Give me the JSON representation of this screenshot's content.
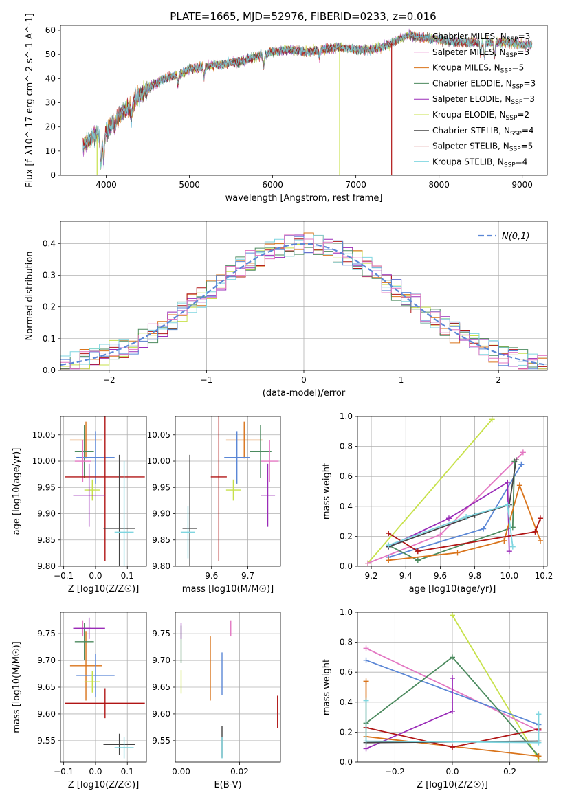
{
  "figure": {
    "title": "PLATE=1665, MJD=52976, FIBERID=0233, z=0.016"
  },
  "chart_data": [
    {
      "id": "spectrum",
      "type": "line",
      "xlabel": "wavelength [Angstrom, rest frame]",
      "ylabel": "Flux [f_λ10^-17 erg cm^-2 s^-1 A^-1]",
      "xlim": [
        3450,
        9300
      ],
      "ylim": [
        0,
        62
      ],
      "xticks": [
        4000,
        5000,
        6000,
        7000,
        8000,
        9000
      ],
      "yticks": [
        0,
        10,
        20,
        30,
        40,
        50,
        60
      ],
      "legend_position": "upper right",
      "continuum": [
        [
          3720,
          12
        ],
        [
          3800,
          15
        ],
        [
          3900,
          17
        ],
        [
          3950,
          16
        ],
        [
          4000,
          18
        ],
        [
          4100,
          23
        ],
        [
          4200,
          26
        ],
        [
          4300,
          29
        ],
        [
          4400,
          33
        ],
        [
          4500,
          36
        ],
        [
          4700,
          40
        ],
        [
          4900,
          42
        ],
        [
          5000,
          44
        ],
        [
          5200,
          45
        ],
        [
          5400,
          46
        ],
        [
          5600,
          47
        ],
        [
          5800,
          49
        ],
        [
          6000,
          51
        ],
        [
          6200,
          52
        ],
        [
          6400,
          51
        ],
        [
          6600,
          52
        ],
        [
          6800,
          53
        ],
        [
          7000,
          52
        ],
        [
          7200,
          52
        ],
        [
          7400,
          54
        ],
        [
          7550,
          57
        ],
        [
          7650,
          58
        ],
        [
          7800,
          57
        ],
        [
          8000,
          56
        ],
        [
          8200,
          55
        ],
        [
          8400,
          55
        ],
        [
          8600,
          55
        ],
        [
          8800,
          55
        ],
        [
          9000,
          54
        ],
        [
          9120,
          54
        ]
      ],
      "dips": [
        {
          "x": 3935,
          "depth": 12
        },
        {
          "x": 3970,
          "depth": 10
        },
        {
          "x": 4103,
          "depth": 4
        },
        {
          "x": 4303,
          "depth": 5
        },
        {
          "x": 4862,
          "depth": 4
        },
        {
          "x": 5175,
          "depth": 4
        },
        {
          "x": 5892,
          "depth": 5
        },
        {
          "x": 6563,
          "depth": 3
        },
        {
          "x": 8500,
          "depth": 5
        },
        {
          "x": 8545,
          "depth": 6
        },
        {
          "x": 8665,
          "depth": 6
        }
      ],
      "spikes": [
        {
          "x": 6805,
          "series": "Kroupa ELODIE"
        },
        {
          "x": 7430,
          "series": "Salpeter STELIB"
        },
        {
          "x": 3890,
          "series": "Kroupa ELODIE"
        }
      ],
      "series": [
        {
          "name": "Chabrier MILES",
          "n_ssp": "3",
          "color": "#56b4d3"
        },
        {
          "name": "Salpeter MILES",
          "n_ssp": "3",
          "color": "#e377c2"
        },
        {
          "name": "Kroupa MILES",
          "n_ssp": "5",
          "color": "#d9731a"
        },
        {
          "name": "Chabrier ELODIE",
          "n_ssp": "3",
          "color": "#4b8a5e"
        },
        {
          "name": "Salpeter ELODIE",
          "n_ssp": "3",
          "color": "#9a2bb8"
        },
        {
          "name": "Kroupa ELODIE",
          "n_ssp": "2",
          "color": "#c7e14a"
        },
        {
          "name": "Chabrier STELIB",
          "n_ssp": "4",
          "color": "#444444"
        },
        {
          "name": "Salpeter STELIB",
          "n_ssp": "5",
          "color": "#b01515"
        },
        {
          "name": "Kroupa STELIB",
          "n_ssp": "4",
          "color": "#7fd6e0"
        }
      ]
    },
    {
      "id": "residual-histogram",
      "type": "histogram",
      "xlabel": "(data-model)/error",
      "ylabel": "Normed distribution",
      "xlim": [
        -2.5,
        2.5
      ],
      "ylim": [
        0,
        0.47
      ],
      "xticks": [
        -2,
        -1,
        0,
        1,
        2
      ],
      "yticks": [
        0.0,
        0.1,
        0.2,
        0.3,
        0.4
      ],
      "grid": true,
      "bin_width": 0.1,
      "legend": "N(0,1)",
      "reference_curve": {
        "type": "gaussian",
        "mean": 0,
        "sigma": 1,
        "color": "#5b87d6"
      },
      "colors": [
        "#d9731a",
        "#9a2bb8",
        "#c7e14a",
        "#b01515",
        "#4b8a5e",
        "#7fd6e0",
        "#5b87d6",
        "#e377c2"
      ]
    },
    {
      "id": "age-vs-Z",
      "type": "errorbar",
      "xlabel": "Z [log10(Z/Z☉)]",
      "ylabel": "age [log10(age/yr)]",
      "xlim": [
        -0.11,
        0.16
      ],
      "ylim": [
        9.8,
        10.085
      ],
      "xticks": [
        -0.1,
        0.0,
        0.1
      ],
      "yticks": [
        9.8,
        9.85,
        9.9,
        9.95,
        10.0,
        10.05
      ],
      "grid": true,
      "points": [
        {
          "color": "#d9731a",
          "x": -0.03,
          "xerr": 0.05,
          "y": 10.04,
          "yerr": 0.035
        },
        {
          "color": "#4b8a5e",
          "x": -0.035,
          "xerr": 0.03,
          "y": 10.018,
          "yerr": 0.05
        },
        {
          "color": "#5b87d6",
          "x": 0.0,
          "xerr": 0.06,
          "y": 10.007,
          "yerr": 0.05
        },
        {
          "color": "#e377c2",
          "x": -0.04,
          "xerr": 0.025,
          "y": 10.0,
          "yerr": 0.04
        },
        {
          "color": "#c7e14a",
          "x": -0.01,
          "xerr": 0.025,
          "y": 9.945,
          "yerr": 0.02
        },
        {
          "color": "#b01515",
          "x": 0.03,
          "xerr": 0.125,
          "y": 9.97,
          "yerr": 0.16
        },
        {
          "color": "#9a2bb8",
          "x": -0.02,
          "xerr": 0.05,
          "y": 9.935,
          "yerr": 0.06
        },
        {
          "color": "#444444",
          "x": 0.075,
          "xerr": 0.05,
          "y": 9.872,
          "yerr": 0.14
        },
        {
          "color": "#7fd6e0",
          "x": 0.09,
          "xerr": 0.03,
          "y": 9.865,
          "yerr": 0.135
        }
      ]
    },
    {
      "id": "age-vs-mass",
      "type": "errorbar",
      "xlabel": "mass [log10(M/M☉)]",
      "ylabel": "",
      "xlim": [
        9.5,
        9.79
      ],
      "ylim": [
        9.8,
        10.085
      ],
      "xticks": [
        9.6,
        9.7
      ],
      "yticks": [
        9.8,
        9.85,
        9.9,
        9.95,
        10.0,
        10.05
      ],
      "grid": true,
      "points": [
        {
          "color": "#d9731a",
          "x": 9.69,
          "xerr": 0.05,
          "y": 10.04,
          "yerr": 0.035
        },
        {
          "color": "#4b8a5e",
          "x": 9.735,
          "xerr": 0.03,
          "y": 10.018,
          "yerr": 0.05
        },
        {
          "color": "#5b87d6",
          "x": 9.67,
          "xerr": 0.035,
          "y": 10.007,
          "yerr": 0.05
        },
        {
          "color": "#e377c2",
          "x": 9.76,
          "xerr": 0.025,
          "y": 10.0,
          "yerr": 0.04
        },
        {
          "color": "#c7e14a",
          "x": 9.66,
          "xerr": 0.02,
          "y": 9.945,
          "yerr": 0.02
        },
        {
          "color": "#b01515",
          "x": 9.62,
          "xerr": 0.022,
          "y": 9.97,
          "yerr": 0.16
        },
        {
          "color": "#9a2bb8",
          "x": 9.755,
          "xerr": 0.02,
          "y": 9.935,
          "yerr": 0.06
        },
        {
          "color": "#444444",
          "x": 9.54,
          "xerr": 0.02,
          "y": 9.872,
          "yerr": 0.14
        },
        {
          "color": "#7fd6e0",
          "x": 9.535,
          "xerr": 0.02,
          "y": 9.865,
          "yerr": 0.05
        }
      ]
    },
    {
      "id": "weight-vs-age",
      "type": "line",
      "xlabel": "age [log10(age/yr)]",
      "ylabel": "mass weight",
      "xlim": [
        9.12,
        10.22
      ],
      "ylim": [
        0,
        1.0
      ],
      "xticks": [
        9.2,
        9.4,
        9.6,
        9.8,
        10.0,
        10.2
      ],
      "yticks": [
        0.0,
        0.2,
        0.4,
        0.6,
        0.8,
        1.0
      ],
      "grid": true,
      "series": [
        {
          "color": "#c7e14a",
          "points": [
            [
              9.18,
              0.02
            ],
            [
              9.9,
              0.98
            ]
          ]
        },
        {
          "color": "#e377c2",
          "points": [
            [
              9.18,
              0.02
            ],
            [
              9.6,
              0.21
            ],
            [
              10.08,
              0.76
            ]
          ]
        },
        {
          "color": "#5b87d6",
          "points": [
            [
              9.3,
              0.06
            ],
            [
              9.85,
              0.25
            ],
            [
              10.07,
              0.68
            ]
          ]
        },
        {
          "color": "#4b8a5e",
          "points": [
            [
              9.3,
              0.14
            ],
            [
              9.47,
              0.04
            ],
            [
              10.02,
              0.26
            ],
            [
              10.03,
              0.7
            ]
          ]
        },
        {
          "color": "#9a2bb8",
          "points": [
            [
              9.3,
              0.13
            ],
            [
              9.65,
              0.32
            ],
            [
              9.99,
              0.56
            ],
            [
              10.0,
              0.1
            ]
          ]
        },
        {
          "color": "#d9731a",
          "points": [
            [
              9.3,
              0.04
            ],
            [
              9.7,
              0.09
            ],
            [
              9.97,
              0.17
            ],
            [
              10.06,
              0.54
            ],
            [
              10.18,
              0.17
            ]
          ]
        },
        {
          "color": "#b01515",
          "points": [
            [
              9.3,
              0.22
            ],
            [
              9.47,
              0.1
            ],
            [
              10.15,
              0.23
            ],
            [
              10.18,
              0.32
            ]
          ]
        },
        {
          "color": "#444444",
          "points": [
            [
              9.3,
              0.13
            ],
            [
              9.8,
              0.34
            ],
            [
              10.0,
              0.41
            ],
            [
              10.04,
              0.71
            ]
          ]
        },
        {
          "color": "#7fd6e0",
          "points": [
            [
              9.3,
              0.14
            ],
            [
              9.75,
              0.33
            ],
            [
              9.99,
              0.41
            ],
            [
              10.02,
              0.13
            ]
          ]
        }
      ]
    },
    {
      "id": "mass-vs-Z",
      "type": "errorbar",
      "xlabel": "Z [log10(Z/Z☉)]",
      "ylabel": "mass [log10(M/M☉)]",
      "xlim": [
        -0.11,
        0.16
      ],
      "ylim": [
        9.51,
        9.79
      ],
      "xticks": [
        -0.1,
        0.0,
        0.1
      ],
      "yticks": [
        9.55,
        9.6,
        9.65,
        9.7,
        9.75
      ],
      "grid": true,
      "points": [
        {
          "color": "#d9731a",
          "x": -0.03,
          "xerr": 0.05,
          "y": 9.69,
          "yerr": 0.065
        },
        {
          "color": "#4b8a5e",
          "x": -0.035,
          "xerr": 0.03,
          "y": 9.735,
          "yerr": 0.035
        },
        {
          "color": "#5b87d6",
          "x": 0.0,
          "xerr": 0.06,
          "y": 9.672,
          "yerr": 0.04
        },
        {
          "color": "#e377c2",
          "x": -0.04,
          "xerr": 0.025,
          "y": 9.76,
          "yerr": 0.015
        },
        {
          "color": "#c7e14a",
          "x": -0.01,
          "xerr": 0.025,
          "y": 9.66,
          "yerr": 0.02
        },
        {
          "color": "#b01515",
          "x": 0.03,
          "xerr": 0.125,
          "y": 9.62,
          "yerr": 0.028
        },
        {
          "color": "#9a2bb8",
          "x": -0.02,
          "xerr": 0.05,
          "y": 9.76,
          "yerr": 0.02
        },
        {
          "color": "#444444",
          "x": 0.075,
          "xerr": 0.05,
          "y": 9.543,
          "yerr": 0.02
        },
        {
          "color": "#7fd6e0",
          "x": 0.09,
          "xerr": 0.03,
          "y": 9.537,
          "yerr": 0.02
        }
      ]
    },
    {
      "id": "mass-vs-EBV",
      "type": "errorbar",
      "xlabel": "E(B-V)",
      "ylabel": "",
      "xlim": [
        -0.002,
        0.034
      ],
      "ylim": [
        9.51,
        9.79
      ],
      "xticks": [
        0.0,
        0.02
      ],
      "yticks": [
        9.55,
        9.6,
        9.65,
        9.7,
        9.75
      ],
      "grid": true,
      "points": [
        {
          "color": "#d9731a",
          "x": 0.01,
          "xerr": 0,
          "y": 9.685,
          "yerr": 0.06
        },
        {
          "color": "#4b8a5e",
          "x": 0.0,
          "xerr": 0,
          "y": 9.73,
          "yerr": 0.035
        },
        {
          "color": "#5b87d6",
          "x": 0.014,
          "xerr": 0,
          "y": 9.675,
          "yerr": 0.04
        },
        {
          "color": "#e377c2",
          "x": 0.017,
          "xerr": 0,
          "y": 9.76,
          "yerr": 0.015
        },
        {
          "color": "#c7e14a",
          "x": 0.0,
          "xerr": 0,
          "y": 9.66,
          "yerr": 0.022
        },
        {
          "color": "#b01515",
          "x": 0.033,
          "xerr": 0,
          "y": 9.604,
          "yerr": 0.03
        },
        {
          "color": "#9a2bb8",
          "x": 0.0,
          "xerr": 0,
          "y": 9.755,
          "yerr": 0.015
        },
        {
          "color": "#444444",
          "x": 0.014,
          "xerr": 0,
          "y": 9.548,
          "yerr": 0.03
        },
        {
          "color": "#7fd6e0",
          "x": 0.014,
          "xerr": 0,
          "y": 9.537,
          "yerr": 0.02
        }
      ]
    },
    {
      "id": "weight-vs-Z",
      "type": "line",
      "xlabel": "Z [log10(Z/Z☉)]",
      "ylabel": "mass weight",
      "xlim": [
        -0.33,
        0.33
      ],
      "ylim": [
        0,
        1.0
      ],
      "xticks": [
        -0.2,
        0.0,
        0.2
      ],
      "yticks": [
        0.0,
        0.2,
        0.4,
        0.6,
        0.8,
        1.0
      ],
      "grid": true,
      "series": [
        {
          "color": "#c7e14a",
          "points": [
            [
              0.0,
              0.98
            ],
            [
              0.3,
              0.02
            ]
          ]
        },
        {
          "color": "#e377c2",
          "points": [
            [
              -0.3,
              0.76
            ],
            [
              0.3,
              0.21
            ]
          ]
        },
        {
          "color": "#5b87d6",
          "points": [
            [
              -0.3,
              0.68
            ],
            [
              0.3,
              0.25
            ]
          ]
        },
        {
          "color": "#4b8a5e",
          "points": [
            [
              -0.3,
              0.26
            ],
            [
              0.0,
              0.7
            ],
            [
              0.3,
              0.04
            ]
          ]
        },
        {
          "color": "#9a2bb8",
          "points": [
            [
              -0.3,
              0.09
            ],
            [
              0.0,
              0.34
            ],
            [
              0.0,
              0.56
            ]
          ]
        },
        {
          "color": "#d9731a",
          "points": [
            [
              -0.3,
              0.54
            ],
            [
              -0.3,
              0.17
            ],
            [
              0.3,
              0.04
            ]
          ]
        },
        {
          "color": "#b01515",
          "points": [
            [
              -0.3,
              0.23
            ],
            [
              0.0,
              0.1
            ],
            [
              0.3,
              0.22
            ]
          ]
        },
        {
          "color": "#444444",
          "points": [
            [
              -0.3,
              0.13
            ],
            [
              0.3,
              0.14
            ]
          ]
        },
        {
          "color": "#7fd6e0",
          "points": [
            [
              -0.3,
              0.41
            ],
            [
              -0.3,
              0.14
            ],
            [
              0.3,
              0.13
            ],
            [
              0.3,
              0.32
            ]
          ]
        }
      ]
    }
  ]
}
